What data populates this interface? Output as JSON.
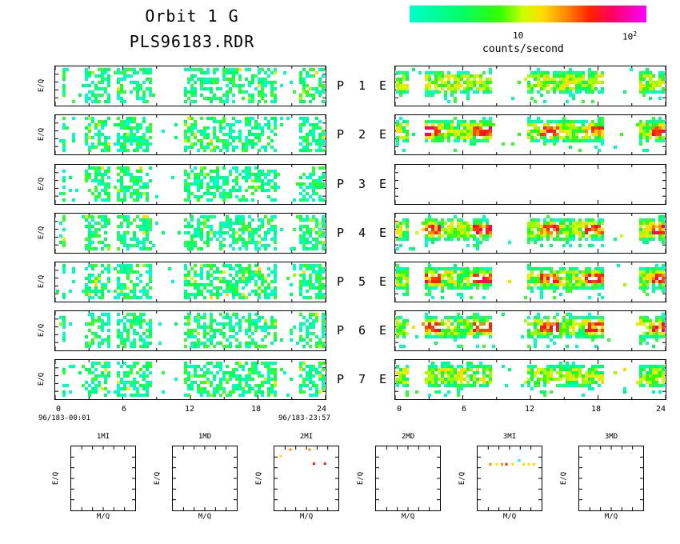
{
  "header": {
    "title_line1": "Orbit 1 G",
    "title_line2": "PLS96183.RDR"
  },
  "colorbar": {
    "tick_10": "10",
    "tick_100_base": "10",
    "tick_100_exp": "2",
    "label": "counts/second",
    "gradient_colors": [
      "#00ffcc",
      "#00ff66",
      "#33ff00",
      "#ccff00",
      "#ffdd00",
      "#ff8800",
      "#ff2200",
      "#ff0066",
      "#ff00ff"
    ]
  },
  "rows": [
    {
      "p": "P",
      "num": "1",
      "e": "E"
    },
    {
      "p": "P",
      "num": "2",
      "e": "E"
    },
    {
      "p": "P",
      "num": "3",
      "e": "E"
    },
    {
      "p": "P",
      "num": "4",
      "e": "E"
    },
    {
      "p": "P",
      "num": "5",
      "e": "E"
    },
    {
      "p": "P",
      "num": "6",
      "e": "E"
    },
    {
      "p": "P",
      "num": "7",
      "e": "E"
    }
  ],
  "axes": {
    "ylabel": "E/Q",
    "xticks": [
      "0",
      "6",
      "12",
      "18",
      "24"
    ],
    "start_time": "96/183-00:01",
    "end_time": "96/183-23:57",
    "mq_label": "M/Q"
  },
  "bottom_panels": [
    {
      "title": "1MI"
    },
    {
      "title": "1MD"
    },
    {
      "title": "2MI"
    },
    {
      "title": "2MD"
    },
    {
      "title": "3MI"
    },
    {
      "title": "3MD"
    }
  ],
  "chart_data": [
    {
      "type": "heatmap",
      "title": "Orbit 1 G PLS96183.RDR",
      "description_of_axes": {
        "x": "hours",
        "y": "E/Q"
      },
      "xlim": [
        0,
        24
      ],
      "colorbar": {
        "label": "counts/second",
        "scale": "log",
        "ticks": [
          10,
          100
        ]
      },
      "left_column": {
        "panels": [
          "P 1",
          "P 2",
          "P 3",
          "P 4",
          "P 5",
          "P 6",
          "P 7"
        ],
        "active_intervals_hours": [
          [
            0.3,
            0.8
          ],
          [
            2.3,
            4.7
          ],
          [
            5.2,
            8.5
          ],
          [
            11.2,
            19.5
          ],
          [
            21.5,
            23.8
          ]
        ],
        "intensity_range": "low (cyan to green, occasional yellow)"
      },
      "right_column": {
        "panels": [
          "E 1",
          "E 2",
          "E 3",
          "E 4",
          "E 5",
          "E 6",
          "E 7"
        ],
        "active_intervals_hours": [
          [
            0.0,
            1.0
          ],
          [
            2.5,
            8.5
          ],
          [
            11.5,
            18.5
          ],
          [
            21.5,
            24
          ]
        ],
        "peak_hours": [
          3.0,
          7.5,
          13.5,
          17.5,
          23.5
        ],
        "empty_panels": [
          "E 3"
        ],
        "intensity_range": "high (green to red/magenta near peaks)"
      }
    },
    {
      "type": "scatter",
      "title": "2MI",
      "xlabel": "M/Q",
      "ylabel": "E/Q",
      "points": [
        {
          "x": 0.1,
          "y": 0.85,
          "c": "#ffdd00"
        },
        {
          "x": 0.25,
          "y": 0.95,
          "c": "#ff8800"
        },
        {
          "x": 0.55,
          "y": 0.95,
          "c": "#ff8800"
        },
        {
          "x": 0.62,
          "y": 0.73,
          "c": "#ff2200"
        },
        {
          "x": 0.79,
          "y": 0.73,
          "c": "#ff2200"
        }
      ]
    },
    {
      "type": "scatter",
      "title": "3MI",
      "xlabel": "M/Q",
      "ylabel": "E/Q",
      "points": [
        {
          "x": 0.2,
          "y": 0.72,
          "c": "#ff8800"
        },
        {
          "x": 0.3,
          "y": 0.72,
          "c": "#ffdd00"
        },
        {
          "x": 0.38,
          "y": 0.72,
          "c": "#ff8800"
        },
        {
          "x": 0.45,
          "y": 0.72,
          "c": "#ff2200"
        },
        {
          "x": 0.55,
          "y": 0.72,
          "c": "#ffdd00"
        },
        {
          "x": 0.65,
          "y": 0.78,
          "c": "#00ffcc"
        },
        {
          "x": 0.72,
          "y": 0.72,
          "c": "#ffdd00"
        },
        {
          "x": 0.8,
          "y": 0.72,
          "c": "#ffdd00"
        },
        {
          "x": 0.88,
          "y": 0.72,
          "c": "#ffdd00"
        }
      ]
    }
  ]
}
